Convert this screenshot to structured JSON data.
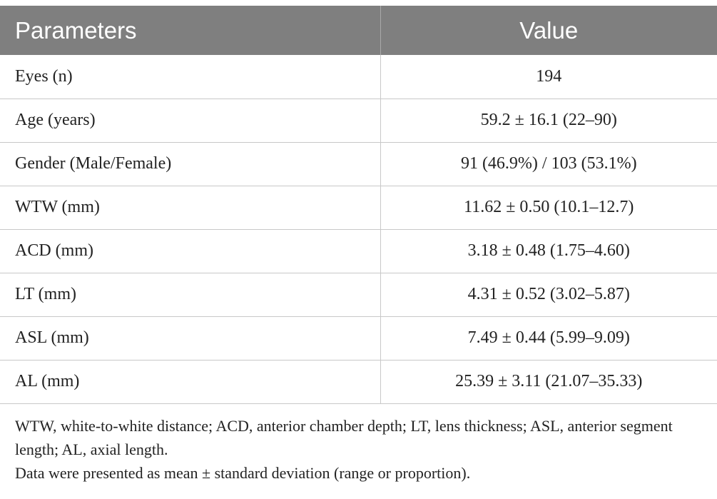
{
  "table": {
    "headers": {
      "parameters": "Parameters",
      "value": "Value"
    },
    "rows": [
      {
        "parameter": "Eyes (n)",
        "value": "194"
      },
      {
        "parameter": "Age (years)",
        "value": "59.2 ± 16.1 (22–90)"
      },
      {
        "parameter": "Gender (Male/Female)",
        "value": "91 (46.9%) / 103 (53.1%)"
      },
      {
        "parameter": "WTW (mm)",
        "value": "11.62 ± 0.50 (10.1–12.7)"
      },
      {
        "parameter": "ACD (mm)",
        "value": "3.18 ± 0.48 (1.75–4.60)"
      },
      {
        "parameter": "LT (mm)",
        "value": "4.31 ± 0.52 (3.02–5.87)"
      },
      {
        "parameter": "ASL (mm)",
        "value": "7.49 ± 0.44 (5.99–9.09)"
      },
      {
        "parameter": "AL (mm)",
        "value": "25.39 ± 3.11 (21.07–35.33)"
      }
    ]
  },
  "footnotes": {
    "abbreviations": "WTW, white-to-white distance; ACD, anterior chamber depth; LT, lens thickness; ASL, anterior segment length; AL, axial length.",
    "data_note": "Data were presented as mean ± standard deviation (range or proportion)."
  },
  "colors": {
    "header_background": "#7f7f7f",
    "header_text": "#ffffff",
    "grid_lines": "#c8c8c8",
    "body_text": "#222222"
  }
}
